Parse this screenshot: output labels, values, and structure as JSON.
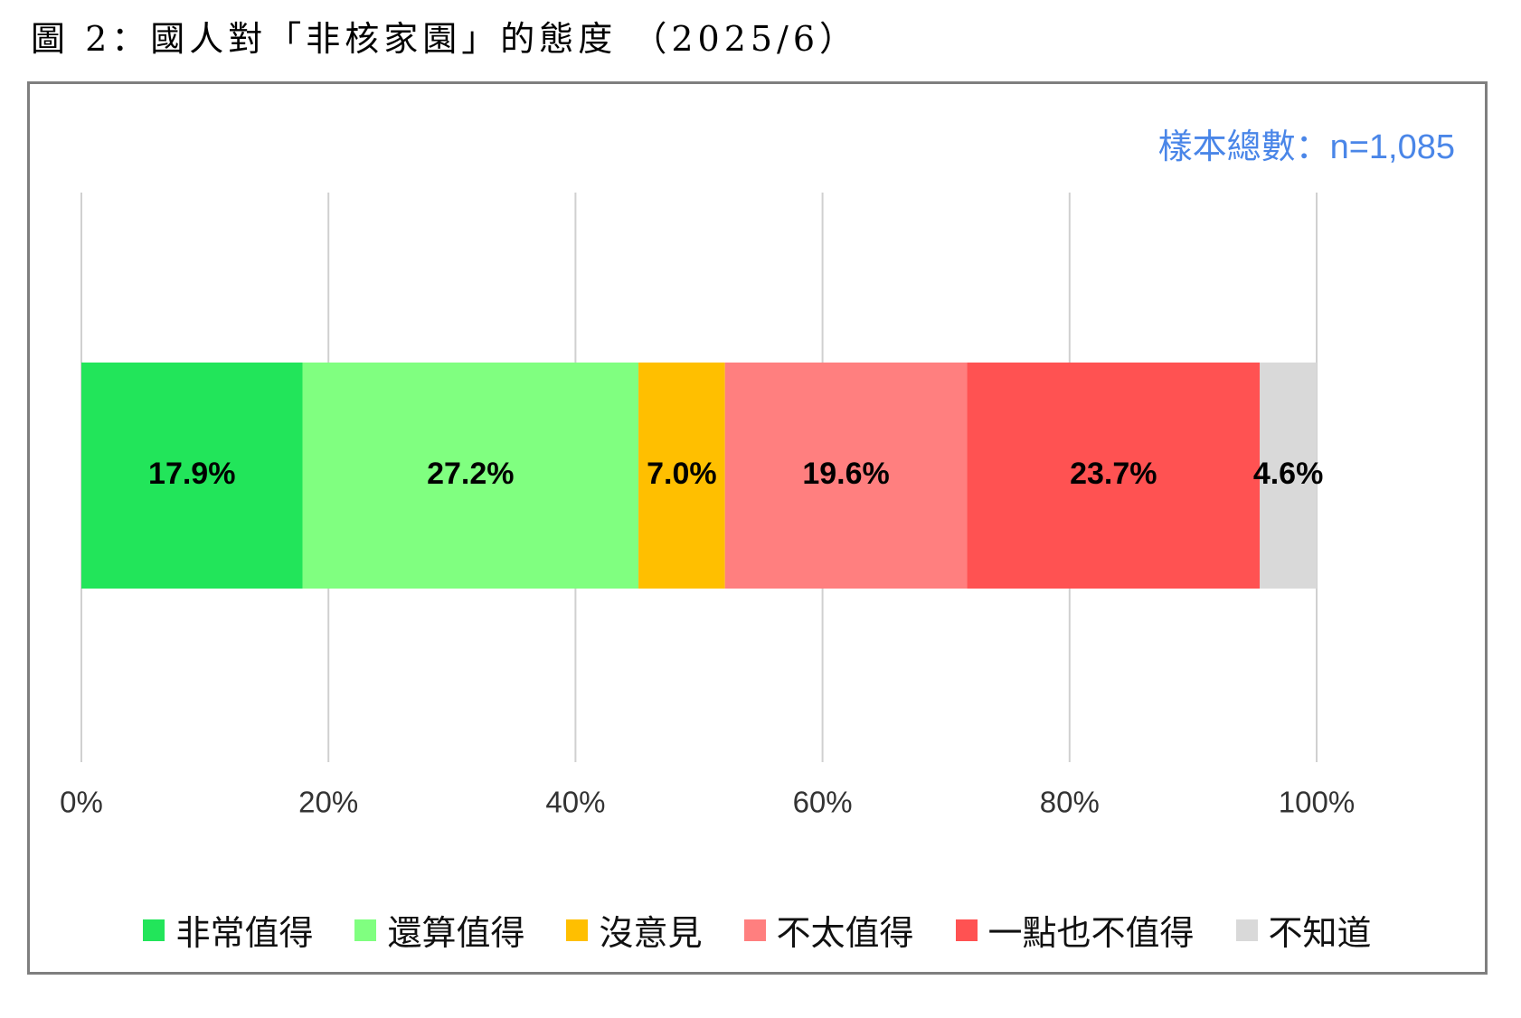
{
  "figure": {
    "title": "圖 2：國人對「非核家園」的態度 （2025/6）"
  },
  "sample_size": "樣本總數：n=1,085",
  "chart_data": {
    "type": "bar",
    "orientation": "horizontal",
    "stacked": true,
    "categories": [
      ""
    ],
    "series": [
      {
        "name": "非常值得",
        "values": [
          17.9
        ],
        "label": "17.9%",
        "color": "#22e55a"
      },
      {
        "name": "還算值得",
        "values": [
          27.2
        ],
        "label": "27.2%",
        "color": "#80ff80"
      },
      {
        "name": "沒意見",
        "values": [
          7.0
        ],
        "label": "7.0%",
        "color": "#ffbf00"
      },
      {
        "name": "不太值得",
        "values": [
          19.6
        ],
        "label": "19.6%",
        "color": "#ff7f7f"
      },
      {
        "name": "一點也不值得",
        "values": [
          23.7
        ],
        "label": "23.7%",
        "color": "#ff5252"
      },
      {
        "name": "不知道",
        "values": [
          4.6
        ],
        "label": "4.6%",
        "color": "#d9d9d9"
      }
    ],
    "xlim": [
      0,
      100
    ],
    "x_ticks": [
      "0%",
      "20%",
      "40%",
      "60%",
      "80%",
      "100%"
    ],
    "grid": true,
    "legend_position": "bottom"
  }
}
